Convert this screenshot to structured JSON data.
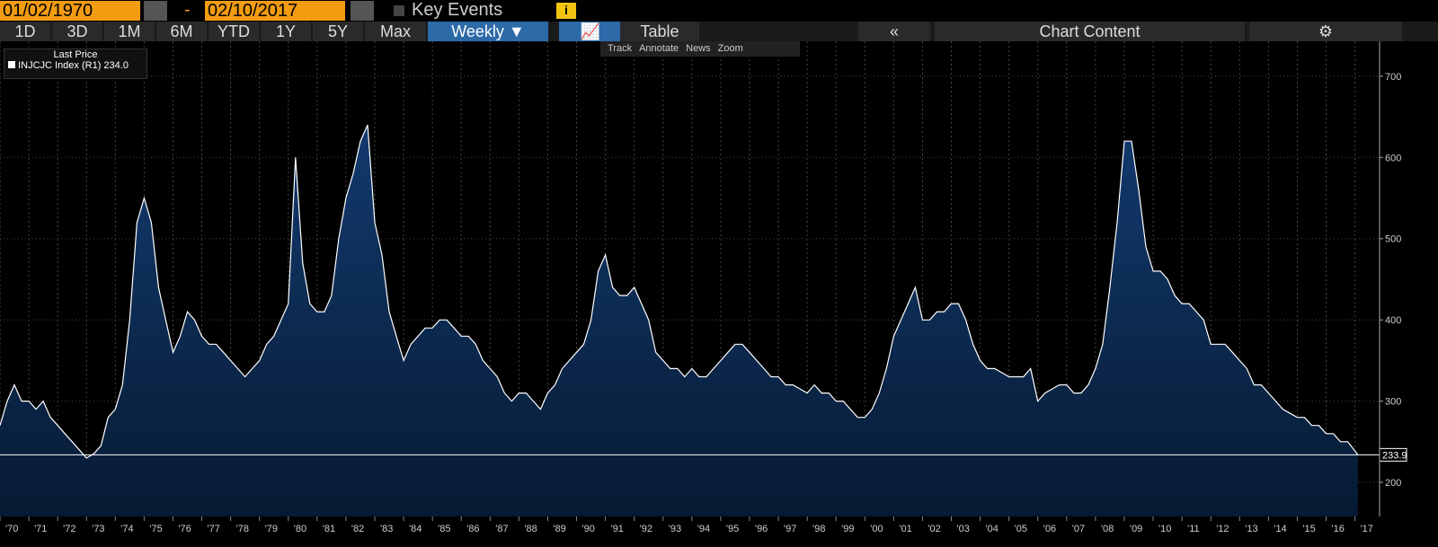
{
  "toolbar": {
    "start_date": "01/02/1970",
    "dash": "-",
    "end_date": "02/10/2017",
    "key_events": "Key Events",
    "ranges": [
      "1D",
      "3D",
      "1M",
      "6M",
      "YTD",
      "1Y",
      "5Y",
      "Max"
    ],
    "frequency": "Weekly",
    "table": "Table",
    "chart_content": "Chart Content",
    "tools": [
      "Track",
      "Annotate",
      "News",
      "Zoom"
    ]
  },
  "legend": {
    "title": "Last Price",
    "entry": "INJCJC Index (R1) 234.0"
  },
  "chart_data": {
    "type": "area",
    "color": "#ffffff",
    "fill": "#0d2a52",
    "grid": true,
    "last_price_line": 233.9,
    "xlim": [
      1970,
      2017.2
    ],
    "ylim": [
      158,
      743
    ],
    "yticks": [
      200,
      300,
      400,
      500,
      600,
      700
    ],
    "xticks": [
      {
        "value": 1970,
        "label": "'70"
      },
      {
        "value": 1971,
        "label": "'71"
      },
      {
        "value": 1972,
        "label": "'72"
      },
      {
        "value": 1973,
        "label": "'73"
      },
      {
        "value": 1974,
        "label": "'74"
      },
      {
        "value": 1975,
        "label": "'75"
      },
      {
        "value": 1976,
        "label": "'76"
      },
      {
        "value": 1977,
        "label": "'77"
      },
      {
        "value": 1978,
        "label": "'78"
      },
      {
        "value": 1979,
        "label": "'79"
      },
      {
        "value": 1980,
        "label": "'80"
      },
      {
        "value": 1981,
        "label": "'81"
      },
      {
        "value": 1982,
        "label": "'82"
      },
      {
        "value": 1983,
        "label": "'83"
      },
      {
        "value": 1984,
        "label": "'84"
      },
      {
        "value": 1985,
        "label": "'85"
      },
      {
        "value": 1986,
        "label": "'86"
      },
      {
        "value": 1987,
        "label": "'87"
      },
      {
        "value": 1988,
        "label": "'88"
      },
      {
        "value": 1989,
        "label": "'89"
      },
      {
        "value": 1990,
        "label": "'90"
      },
      {
        "value": 1991,
        "label": "'91"
      },
      {
        "value": 1992,
        "label": "'92"
      },
      {
        "value": 1993,
        "label": "'93"
      },
      {
        "value": 1994,
        "label": "'94"
      },
      {
        "value": 1995,
        "label": "'95"
      },
      {
        "value": 1996,
        "label": "'96"
      },
      {
        "value": 1997,
        "label": "'97"
      },
      {
        "value": 1998,
        "label": "'98"
      },
      {
        "value": 1999,
        "label": "'99"
      },
      {
        "value": 2000,
        "label": "'00"
      },
      {
        "value": 2001,
        "label": "'01"
      },
      {
        "value": 2002,
        "label": "'02"
      },
      {
        "value": 2003,
        "label": "'03"
      },
      {
        "value": 2004,
        "label": "'04"
      },
      {
        "value": 2005,
        "label": "'05"
      },
      {
        "value": 2006,
        "label": "'06"
      },
      {
        "value": 2007,
        "label": "'07"
      },
      {
        "value": 2008,
        "label": "'08"
      },
      {
        "value": 2009,
        "label": "'09"
      },
      {
        "value": 2010,
        "label": "'10"
      },
      {
        "value": 2011,
        "label": "'11"
      },
      {
        "value": 2012,
        "label": "'12"
      },
      {
        "value": 2013,
        "label": "'13"
      },
      {
        "value": 2014,
        "label": "'14"
      },
      {
        "value": 2015,
        "label": "'15"
      },
      {
        "value": 2016,
        "label": "'16"
      },
      {
        "value": 2017,
        "label": "'17"
      }
    ],
    "x": [
      1970,
      1970.25,
      1970.5,
      1970.75,
      1971,
      1971.25,
      1971.5,
      1971.75,
      1972,
      1972.25,
      1972.5,
      1972.75,
      1973,
      1973.25,
      1973.5,
      1973.75,
      1974,
      1974.25,
      1974.5,
      1974.75,
      1975,
      1975.25,
      1975.5,
      1975.75,
      1976,
      1976.25,
      1976.5,
      1976.75,
      1977,
      1977.25,
      1977.5,
      1977.75,
      1978,
      1978.25,
      1978.5,
      1978.75,
      1979,
      1979.25,
      1979.5,
      1979.75,
      1980,
      1980.25,
      1980.5,
      1980.75,
      1981,
      1981.25,
      1981.5,
      1981.75,
      1982,
      1982.25,
      1982.5,
      1982.75,
      1983,
      1983.25,
      1983.5,
      1983.75,
      1984,
      1984.25,
      1984.5,
      1984.75,
      1985,
      1985.25,
      1985.5,
      1985.75,
      1986,
      1986.25,
      1986.5,
      1986.75,
      1987,
      1987.25,
      1987.5,
      1987.75,
      1988,
      1988.25,
      1988.5,
      1988.75,
      1989,
      1989.25,
      1989.5,
      1989.75,
      1990,
      1990.25,
      1990.5,
      1990.75,
      1991,
      1991.25,
      1991.5,
      1991.75,
      1992,
      1992.25,
      1992.5,
      1992.75,
      1993,
      1993.25,
      1993.5,
      1993.75,
      1994,
      1994.25,
      1994.5,
      1994.75,
      1995,
      1995.25,
      1995.5,
      1995.75,
      1996,
      1996.25,
      1996.5,
      1996.75,
      1997,
      1997.25,
      1997.5,
      1997.75,
      1998,
      1998.25,
      1998.5,
      1998.75,
      1999,
      1999.25,
      1999.5,
      1999.75,
      2000,
      2000.25,
      2000.5,
      2000.75,
      2001,
      2001.25,
      2001.5,
      2001.75,
      2002,
      2002.25,
      2002.5,
      2002.75,
      2003,
      2003.25,
      2003.5,
      2003.75,
      2004,
      2004.25,
      2004.5,
      2004.75,
      2005,
      2005.25,
      2005.5,
      2005.75,
      2006,
      2006.25,
      2006.5,
      2006.75,
      2007,
      2007.25,
      2007.5,
      2007.75,
      2008,
      2008.25,
      2008.5,
      2008.75,
      2009,
      2009.25,
      2009.5,
      2009.75,
      2010,
      2010.25,
      2010.5,
      2010.75,
      2011,
      2011.25,
      2011.5,
      2011.75,
      2012,
      2012.25,
      2012.5,
      2012.75,
      2013,
      2013.25,
      2013.5,
      2013.75,
      2014,
      2014.25,
      2014.5,
      2014.75,
      2015,
      2015.25,
      2015.5,
      2015.75,
      2016,
      2016.25,
      2016.5,
      2016.75,
      2017.1
    ],
    "values": [
      270,
      300,
      320,
      300,
      300,
      290,
      300,
      280,
      270,
      260,
      250,
      240,
      230,
      235,
      245,
      280,
      290,
      320,
      400,
      520,
      550,
      520,
      440,
      400,
      360,
      380,
      410,
      400,
      380,
      370,
      370,
      360,
      350,
      340,
      330,
      340,
      350,
      370,
      380,
      400,
      420,
      600,
      470,
      420,
      410,
      410,
      430,
      500,
      550,
      580,
      620,
      640,
      520,
      480,
      410,
      380,
      350,
      370,
      380,
      390,
      390,
      400,
      400,
      390,
      380,
      380,
      370,
      350,
      340,
      330,
      310,
      300,
      310,
      310,
      300,
      290,
      310,
      320,
      340,
      350,
      360,
      370,
      400,
      460,
      480,
      440,
      430,
      430,
      440,
      420,
      400,
      360,
      350,
      340,
      340,
      330,
      340,
      330,
      330,
      340,
      350,
      360,
      370,
      370,
      360,
      350,
      340,
      330,
      330,
      320,
      320,
      315,
      310,
      320,
      310,
      310,
      300,
      300,
      290,
      280,
      280,
      290,
      310,
      340,
      380,
      400,
      420,
      440,
      400,
      400,
      410,
      410,
      420,
      420,
      400,
      370,
      350,
      340,
      340,
      335,
      330,
      330,
      330,
      340,
      300,
      310,
      315,
      320,
      320,
      310,
      310,
      320,
      340,
      370,
      440,
      520,
      620,
      620,
      560,
      490,
      460,
      460,
      450,
      430,
      420,
      420,
      410,
      400,
      370,
      370,
      370,
      360,
      350,
      340,
      320,
      320,
      310,
      300,
      290,
      285,
      280,
      280,
      270,
      270,
      260,
      260,
      250,
      250,
      234
    ]
  }
}
